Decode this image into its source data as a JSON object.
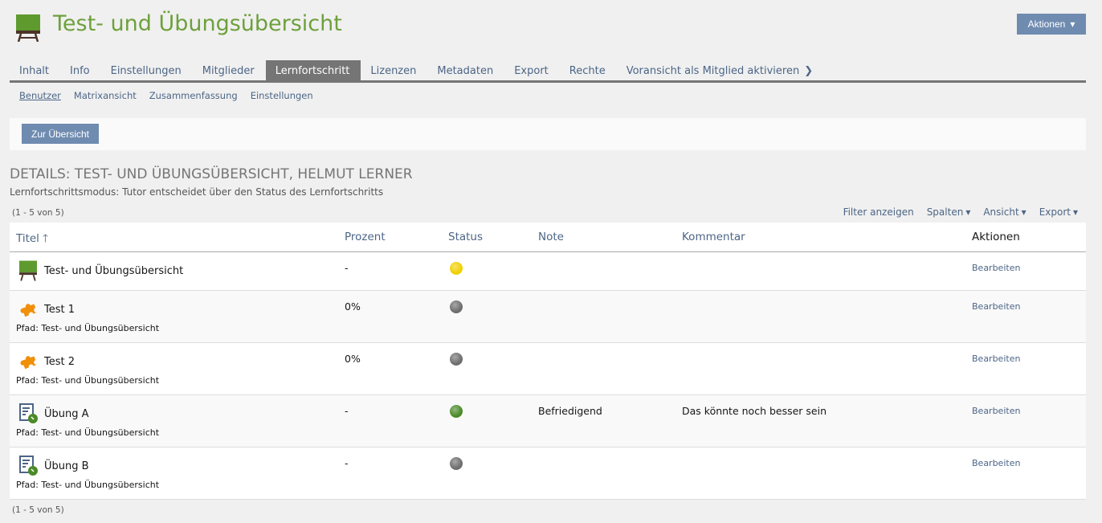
{
  "header": {
    "title": "Test- und Übungsübersicht",
    "actions_label": "Aktionen"
  },
  "tabs": [
    "Inhalt",
    "Info",
    "Einstellungen",
    "Mitglieder",
    "Lernfortschritt",
    "Lizenzen",
    "Metadaten",
    "Export",
    "Rechte",
    "Voransicht als Mitglied aktivieren"
  ],
  "active_tab": "Lernfortschritt",
  "subtabs": [
    "Benutzer",
    "Matrixansicht",
    "Zusammenfassung",
    "Einstellungen"
  ],
  "toolbar": {
    "back_label": "Zur Übersicht"
  },
  "details": {
    "heading": "DETAILS: TEST- UND ÜBUNGSÜBERSICHT, HELMUT LERNER",
    "mode": "Lernfortschrittsmodus: Tutor entscheidet über den Status des Lernfortschritts"
  },
  "count_top": "(1 - 5 von 5)",
  "count_bottom": "(1 - 5 von 5)",
  "table_controls": [
    "Filter anzeigen",
    "Spalten",
    "Ansicht",
    "Export"
  ],
  "columns": [
    "Titel",
    "Prozent",
    "Status",
    "Note",
    "Kommentar",
    "Aktionen"
  ],
  "colors": {
    "yellow": "#f0d000",
    "gray": "#6e6e6e",
    "green": "#4a8a28",
    "accent": "#6f8bb0"
  },
  "rows": [
    {
      "icon": "course-icon",
      "title": "Test- und Übungsübersicht",
      "path": "",
      "percent": "-",
      "status": "yellow",
      "note": "",
      "comment": "",
      "action": "Bearbeiten"
    },
    {
      "icon": "test-icon",
      "title": "Test 1",
      "path": "Pfad: Test- und Übungsübersicht",
      "percent": "0%",
      "status": "gray",
      "note": "",
      "comment": "",
      "action": "Bearbeiten"
    },
    {
      "icon": "test-icon",
      "title": "Test 2",
      "path": "Pfad: Test- und Übungsübersicht",
      "percent": "0%",
      "status": "gray",
      "note": "",
      "comment": "",
      "action": "Bearbeiten"
    },
    {
      "icon": "exercise-icon",
      "title": "Übung A",
      "path": "Pfad: Test- und Übungsübersicht",
      "percent": "-",
      "status": "green",
      "note": "Befriedigend",
      "comment": "Das könnte noch besser sein",
      "action": "Bearbeiten"
    },
    {
      "icon": "exercise-icon",
      "title": "Übung B",
      "path": "Pfad: Test- und Übungsübersicht",
      "percent": "-",
      "status": "gray",
      "note": "",
      "comment": "",
      "action": "Bearbeiten"
    }
  ]
}
